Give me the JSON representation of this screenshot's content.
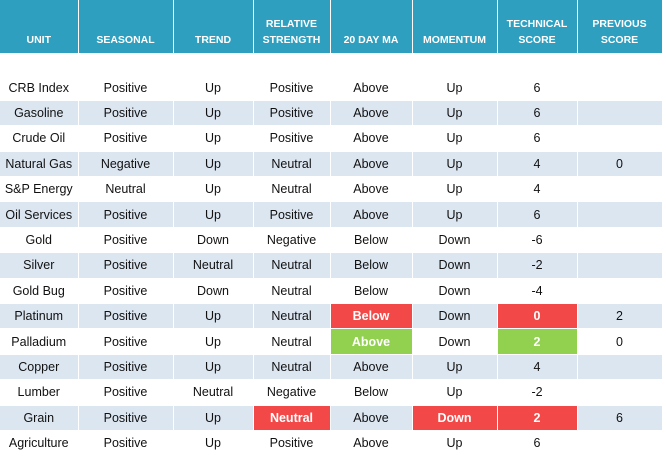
{
  "table": {
    "header": [
      "UNIT",
      "SEASONAL",
      "TREND",
      "RELATIVE STRENGTH",
      "20 DAY MA",
      "MOMENTUM",
      "TECHNICAL SCORE",
      "PREVIOUS SCORE"
    ],
    "rows": [
      {
        "cells": [
          "CRB Index",
          "Positive",
          "Up",
          "Positive",
          "Above",
          "Up",
          6,
          null
        ]
      },
      {
        "cells": [
          "Gasoline",
          "Positive",
          "Up",
          "Positive",
          "Above",
          "Up",
          6,
          null
        ]
      },
      {
        "cells": [
          "Crude Oil",
          "Positive",
          "Up",
          "Positive",
          "Above",
          "Up",
          6,
          null
        ]
      },
      {
        "cells": [
          "Natural Gas",
          "Negative",
          "Up",
          "Neutral",
          "Above",
          "Up",
          4,
          0
        ]
      },
      {
        "cells": [
          "S&P Energy",
          "Neutral",
          "Up",
          "Neutral",
          "Above",
          "Up",
          4,
          null
        ]
      },
      {
        "cells": [
          "Oil Services",
          "Positive",
          "Up",
          "Positive",
          "Above",
          "Up",
          6,
          null
        ]
      },
      {
        "cells": [
          "Gold",
          "Positive",
          "Down",
          "Negative",
          "Below",
          "Down",
          -6,
          null
        ]
      },
      {
        "cells": [
          "Silver",
          "Positive",
          "Neutral",
          "Neutral",
          "Below",
          "Down",
          -2,
          null
        ]
      },
      {
        "cells": [
          "Gold Bug",
          "Positive",
          "Down",
          "Neutral",
          "Below",
          "Down",
          -4,
          null
        ]
      },
      {
        "cells": [
          "Platinum",
          "Positive",
          "Up",
          "Neutral",
          "Below",
          "Down",
          0,
          2
        ],
        "highlight": {
          "4": "#f24848",
          "6": "#f24848"
        }
      },
      {
        "cells": [
          "Palladium",
          "Positive",
          "Up",
          "Neutral",
          "Above",
          "Down",
          2,
          0
        ],
        "highlight": {
          "4": "#92d050",
          "6": "#92d050"
        }
      },
      {
        "cells": [
          "Copper",
          "Positive",
          "Up",
          "Neutral",
          "Above",
          "Up",
          4,
          null
        ]
      },
      {
        "cells": [
          "Lumber",
          "Positive",
          "Neutral",
          "Negative",
          "Below",
          "Up",
          -2,
          null
        ]
      },
      {
        "cells": [
          "Grain",
          "Positive",
          "Up",
          "Neutral",
          "Above",
          "Down",
          2,
          6
        ],
        "highlight": {
          "3": "#f24848",
          "5": "#f24848",
          "6": "#f24848"
        }
      },
      {
        "cells": [
          "Agriculture",
          "Positive",
          "Up",
          "Positive",
          "Above",
          "Up",
          6,
          null
        ]
      }
    ]
  }
}
